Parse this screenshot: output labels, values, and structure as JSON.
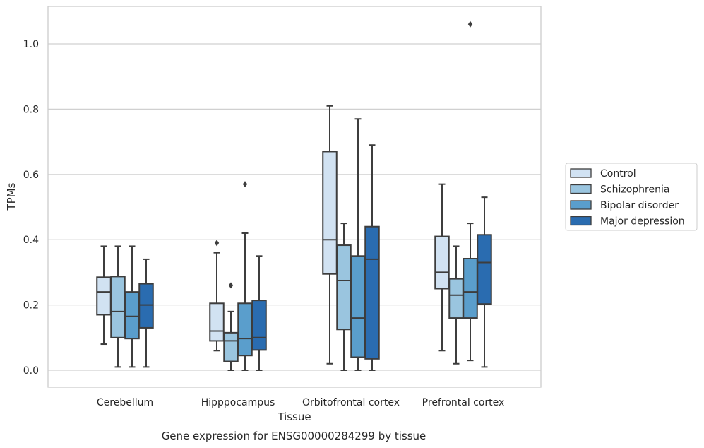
{
  "chart_data": {
    "type": "boxplot",
    "title": "",
    "caption": "Gene expression for ENSG00000284299 by tissue",
    "xlabel": "Tissue",
    "ylabel": "TPMs",
    "ylim": [
      -0.05,
      1.12
    ],
    "yticks": [
      0.0,
      0.2,
      0.4,
      0.6,
      0.8,
      1.0
    ],
    "ytick_labels": [
      "0.0",
      "0.2",
      "0.4",
      "0.6",
      "0.8",
      "1.0"
    ],
    "grid": "horizontal",
    "legend_position": "right",
    "categories": [
      "Cerebellum",
      "Hipppocampus",
      "Orbitofrontal cortex",
      "Prefrontal cortex"
    ],
    "series": [
      {
        "name": "Control",
        "color": "#d1e2f2",
        "boxes": [
          {
            "whisker_low": 0.08,
            "q1": 0.17,
            "median": 0.24,
            "q3": 0.285,
            "whisker_high": 0.38,
            "outliers": []
          },
          {
            "whisker_low": 0.06,
            "q1": 0.09,
            "median": 0.12,
            "q3": 0.205,
            "whisker_high": 0.36,
            "outliers": [
              0.39
            ]
          },
          {
            "whisker_low": 0.02,
            "q1": 0.295,
            "median": 0.4,
            "q3": 0.67,
            "whisker_high": 0.81,
            "outliers": []
          },
          {
            "whisker_low": 0.06,
            "q1": 0.25,
            "median": 0.3,
            "q3": 0.41,
            "whisker_high": 0.57,
            "outliers": []
          }
        ]
      },
      {
        "name": "Schizophrenia",
        "color": "#9ac5df",
        "boxes": [
          {
            "whisker_low": 0.01,
            "q1": 0.1,
            "median": 0.18,
            "q3": 0.287,
            "whisker_high": 0.38,
            "outliers": []
          },
          {
            "whisker_low": 0.0,
            "q1": 0.027,
            "median": 0.09,
            "q3": 0.115,
            "whisker_high": 0.18,
            "outliers": [
              0.26
            ]
          },
          {
            "whisker_low": 0.0,
            "q1": 0.125,
            "median": 0.275,
            "q3": 0.383,
            "whisker_high": 0.45,
            "outliers": []
          },
          {
            "whisker_low": 0.02,
            "q1": 0.16,
            "median": 0.23,
            "q3": 0.28,
            "whisker_high": 0.38,
            "outliers": []
          }
        ]
      },
      {
        "name": "Bipolar disorder",
        "color": "#5a9ecc",
        "boxes": [
          {
            "whisker_low": 0.01,
            "q1": 0.097,
            "median": 0.165,
            "q3": 0.24,
            "whisker_high": 0.38,
            "outliers": []
          },
          {
            "whisker_low": 0.0,
            "q1": 0.045,
            "median": 0.097,
            "q3": 0.205,
            "whisker_high": 0.42,
            "outliers": [
              0.57
            ]
          },
          {
            "whisker_low": 0.0,
            "q1": 0.04,
            "median": 0.16,
            "q3": 0.35,
            "whisker_high": 0.77,
            "outliers": []
          },
          {
            "whisker_low": 0.03,
            "q1": 0.16,
            "median": 0.24,
            "q3": 0.342,
            "whisker_high": 0.45,
            "outliers": [
              1.06
            ]
          }
        ]
      },
      {
        "name": "Major depression",
        "color": "#2a6cb0",
        "boxes": [
          {
            "whisker_low": 0.01,
            "q1": 0.13,
            "median": 0.2,
            "q3": 0.265,
            "whisker_high": 0.34,
            "outliers": []
          },
          {
            "whisker_low": 0.0,
            "q1": 0.062,
            "median": 0.1,
            "q3": 0.214,
            "whisker_high": 0.35,
            "outliers": []
          },
          {
            "whisker_low": 0.0,
            "q1": 0.035,
            "median": 0.34,
            "q3": 0.44,
            "whisker_high": 0.69,
            "outliers": []
          },
          {
            "whisker_low": 0.01,
            "q1": 0.203,
            "median": 0.33,
            "q3": 0.415,
            "whisker_high": 0.53,
            "outliers": []
          }
        ]
      }
    ]
  }
}
